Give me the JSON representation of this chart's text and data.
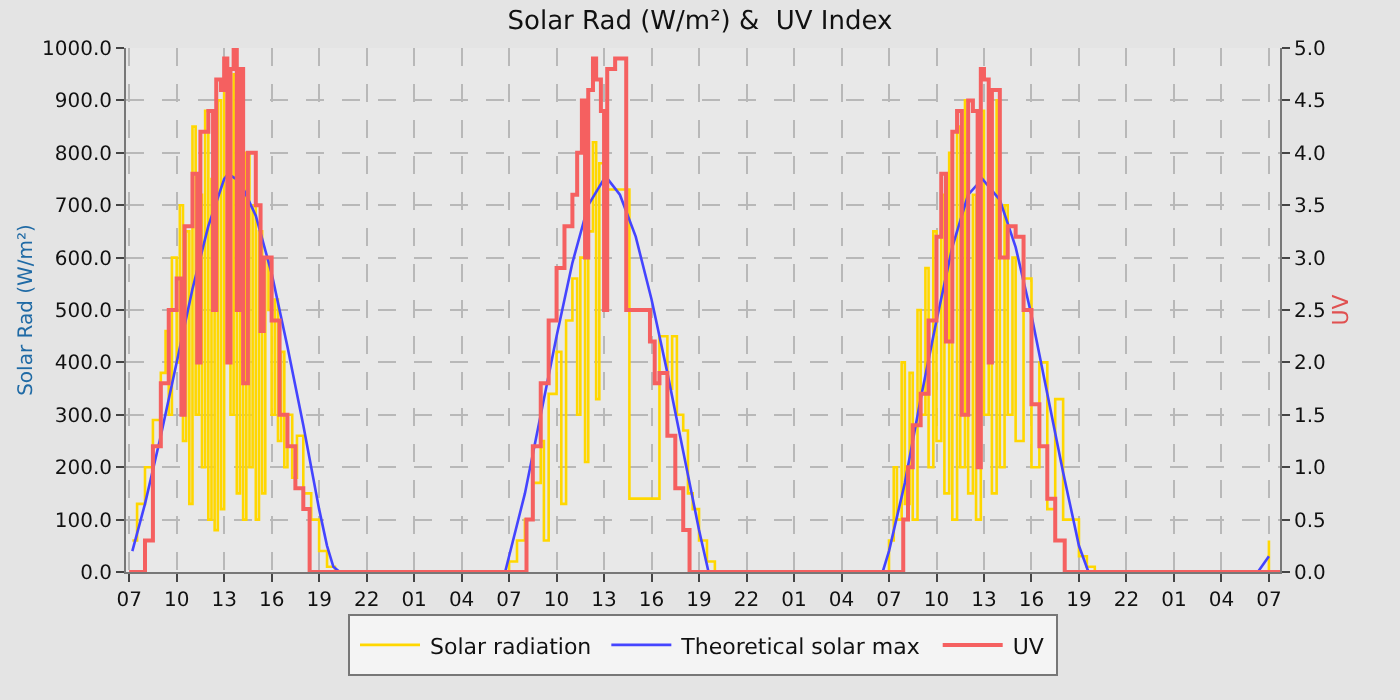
{
  "chart_data": {
    "type": "line",
    "title": "Solar Rad (W/m²) &  UV Index",
    "ylabel": "Solar Rad (W/m²)",
    "y2label": "UV",
    "xlim": [
      "--01-01T06:48",
      "--01-04T07:42"
    ],
    "xticks": [
      {
        "value": "--01-01T07:00",
        "label": "07"
      },
      {
        "value": "--01-01T10:00",
        "label": "10"
      },
      {
        "value": "--01-01T13:00",
        "label": "13"
      },
      {
        "value": "--01-01T16:00",
        "label": "16"
      },
      {
        "value": "--01-01T19:00",
        "label": "19"
      },
      {
        "value": "--01-01T22:00",
        "label": "22"
      },
      {
        "value": "--01-02T01:00",
        "label": "01"
      },
      {
        "value": "--01-02T04:00",
        "label": "04"
      },
      {
        "value": "--01-02T07:00",
        "label": "07"
      },
      {
        "value": "--01-02T10:00",
        "label": "10"
      },
      {
        "value": "--01-02T13:00",
        "label": "13"
      },
      {
        "value": "--01-02T16:00",
        "label": "16"
      },
      {
        "value": "--01-02T19:00",
        "label": "19"
      },
      {
        "value": "--01-02T22:00",
        "label": "22"
      },
      {
        "value": "--01-03T01:00",
        "label": "01"
      },
      {
        "value": "--01-03T04:00",
        "label": "04"
      },
      {
        "value": "--01-03T07:00",
        "label": "07"
      },
      {
        "value": "--01-03T10:00",
        "label": "10"
      },
      {
        "value": "--01-03T13:00",
        "label": "13"
      },
      {
        "value": "--01-03T16:00",
        "label": "16"
      },
      {
        "value": "--01-03T19:00",
        "label": "19"
      },
      {
        "value": "--01-03T22:00",
        "label": "22"
      },
      {
        "value": "--01-04T01:00",
        "label": "01"
      },
      {
        "value": "--01-04T04:00",
        "label": "04"
      },
      {
        "value": "--01-04T07:00",
        "label": "07"
      }
    ],
    "ylim": [
      0,
      1000
    ],
    "yticks": [
      {
        "value": 0,
        "label": "0.0"
      },
      {
        "value": 100,
        "label": "100.0"
      },
      {
        "value": 200,
        "label": "200.0"
      },
      {
        "value": 300,
        "label": "300.0"
      },
      {
        "value": 400,
        "label": "400.0"
      },
      {
        "value": 500,
        "label": "500.0"
      },
      {
        "value": 600,
        "label": "600.0"
      },
      {
        "value": 700,
        "label": "700.0"
      },
      {
        "value": 800,
        "label": "800.0"
      },
      {
        "value": 900,
        "label": "900.0"
      },
      {
        "value": 1000,
        "label": "1000.0"
      }
    ],
    "y2lim": [
      0,
      5
    ],
    "y2ticks": [
      {
        "value": 0,
        "label": "0.0"
      },
      {
        "value": 0.5,
        "label": "0.5"
      },
      {
        "value": 1,
        "label": "1.0"
      },
      {
        "value": 1.5,
        "label": "1.5"
      },
      {
        "value": 2,
        "label": "2.0"
      },
      {
        "value": 2.5,
        "label": "2.5"
      },
      {
        "value": 3,
        "label": "3.0"
      },
      {
        "value": 3.5,
        "label": "3.5"
      },
      {
        "value": 4,
        "label": "4.0"
      },
      {
        "value": 4.5,
        "label": "4.5"
      },
      {
        "value": 5,
        "label": "5.0"
      }
    ],
    "grid": true,
    "legend": "bottom",
    "marker": "none",
    "series": [
      {
        "name": "Solar radiation",
        "type": "step",
        "color": "#ffd700",
        "x": [
          "--01-01T07:12",
          "--01-01T07:30",
          "--01-01T08:00",
          "--01-01T08:30",
          "--01-01T09:00",
          "--01-01T09:18",
          "--01-01T09:30",
          "--01-01T09:42",
          "--01-01T10:00",
          "--01-01T10:12",
          "--01-01T10:24",
          "--01-01T10:36",
          "--01-01T10:48",
          "--01-01T11:00",
          "--01-01T11:12",
          "--01-01T11:24",
          "--01-01T11:36",
          "--01-01T11:48",
          "--01-01T12:00",
          "--01-01T12:12",
          "--01-01T12:24",
          "--01-01T12:36",
          "--01-01T12:48",
          "--01-01T13:00",
          "--01-01T13:12",
          "--01-01T13:24",
          "--01-01T13:36",
          "--01-01T13:48",
          "--01-01T14:00",
          "--01-01T14:12",
          "--01-01T14:24",
          "--01-01T14:36",
          "--01-01T14:48",
          "--01-01T15:00",
          "--01-01T15:12",
          "--01-01T15:24",
          "--01-01T15:36",
          "--01-01T15:48",
          "--01-01T16:00",
          "--01-01T16:12",
          "--01-01T16:24",
          "--01-01T16:36",
          "--01-01T16:48",
          "--01-01T17:00",
          "--01-01T17:18",
          "--01-01T17:36",
          "--01-01T18:00",
          "--01-01T18:30",
          "--01-01T19:00",
          "--01-01T19:30",
          "--01-01T20:00",
          "--01-02T06:30",
          "--01-02T07:00",
          "--01-02T07:30",
          "--01-02T08:00",
          "--01-02T08:30",
          "--01-02T09:00",
          "--01-02T09:12",
          "--01-02T09:30",
          "--01-02T10:00",
          "--01-02T10:18",
          "--01-02T10:36",
          "--01-02T11:00",
          "--01-02T11:18",
          "--01-02T11:30",
          "--01-02T11:48",
          "--01-02T12:00",
          "--01-02T12:18",
          "--01-02T12:30",
          "--01-02T12:42",
          "--01-02T13:00",
          "--01-02T13:12",
          "--01-02T13:30",
          "--01-02T14:00",
          "--01-02T14:24",
          "--01-02T14:36",
          "--01-02T15:00",
          "--01-02T15:30",
          "--01-02T16:00",
          "--01-02T16:24",
          "--01-02T16:30",
          "--01-02T17:00",
          "--01-02T17:18",
          "--01-02T17:36",
          "--01-02T18:00",
          "--01-02T18:18",
          "--01-02T18:36",
          "--01-02T19:00",
          "--01-02T19:30",
          "--01-02T20:00",
          "--01-03T06:30",
          "--01-03T07:00",
          "--01-03T07:18",
          "--01-03T07:30",
          "--01-03T07:48",
          "--01-03T08:00",
          "--01-03T08:18",
          "--01-03T08:30",
          "--01-03T08:48",
          "--01-03T09:00",
          "--01-03T09:18",
          "--01-03T09:30",
          "--01-03T09:48",
          "--01-03T10:00",
          "--01-03T10:18",
          "--01-03T10:30",
          "--01-03T10:48",
          "--01-03T11:00",
          "--01-03T11:18",
          "--01-03T11:30",
          "--01-03T11:48",
          "--01-03T12:00",
          "--01-03T12:18",
          "--01-03T12:30",
          "--01-03T12:48",
          "--01-03T13:00",
          "--01-03T13:18",
          "--01-03T13:30",
          "--01-03T13:48",
          "--01-03T14:00",
          "--01-03T14:18",
          "--01-03T14:30",
          "--01-03T14:48",
          "--01-03T15:00",
          "--01-03T15:30",
          "--01-03T16:00",
          "--01-03T16:30",
          "--01-03T17:00",
          "--01-03T17:30",
          "--01-03T18:00",
          "--01-03T18:30",
          "--01-03T19:00",
          "--01-03T19:30",
          "--01-03T20:00",
          "--01-04T06:30",
          "--01-04T07:00"
        ],
        "values": [
          60,
          130,
          200,
          290,
          380,
          460,
          300,
          600,
          400,
          700,
          250,
          650,
          130,
          850,
          300,
          720,
          200,
          880,
          100,
          750,
          80,
          900,
          120,
          920,
          600,
          300,
          950,
          150,
          900,
          100,
          800,
          200,
          700,
          100,
          650,
          150,
          600,
          500,
          300,
          520,
          250,
          420,
          200,
          300,
          180,
          260,
          150,
          100,
          40,
          10,
          0,
          0,
          20,
          60,
          100,
          170,
          250,
          60,
          340,
          420,
          130,
          480,
          560,
          300,
          600,
          210,
          650,
          820,
          330,
          780,
          650,
          730,
          730,
          730,
          730,
          140,
          140,
          140,
          140,
          140,
          450,
          350,
          450,
          300,
          270,
          150,
          120,
          60,
          20,
          0,
          0,
          60,
          200,
          100,
          400,
          130,
          380,
          100,
          500,
          300,
          580,
          200,
          650,
          250,
          720,
          150,
          800,
          100,
          850,
          200,
          900,
          150,
          720,
          100,
          880,
          300,
          820,
          150,
          900,
          200,
          700,
          300,
          600,
          250,
          560,
          200,
          400,
          120,
          330,
          100,
          100,
          30,
          10,
          0,
          0,
          60
        ]
      },
      {
        "name": "Theoretical solar max",
        "color": "#4444ff",
        "x": [
          "--01-01T07:12",
          "--01-01T08:00",
          "--01-01T09:00",
          "--01-01T10:00",
          "--01-01T11:00",
          "--01-01T12:00",
          "--01-01T13:00",
          "--01-01T13:15",
          "--01-01T14:00",
          "--01-01T15:00",
          "--01-01T16:00",
          "--01-01T17:00",
          "--01-01T18:00",
          "--01-01T19:00",
          "--01-01T19:30",
          "--01-01T19:54",
          "--01-01T20:18",
          "--01-02T06:45",
          "--01-02T07:00",
          "--01-02T08:00",
          "--01-02T09:00",
          "--01-02T10:00",
          "--01-02T11:00",
          "--01-02T12:00",
          "--01-02T13:06",
          "--01-02T14:00",
          "--01-02T15:00",
          "--01-02T16:00",
          "--01-02T17:00",
          "--01-02T18:00",
          "--01-02T19:00",
          "--01-02T19:36",
          "--01-03T06:36",
          "--01-03T07:00",
          "--01-03T08:00",
          "--01-03T09:00",
          "--01-03T10:00",
          "--01-03T11:00",
          "--01-03T12:00",
          "--01-03T12:54",
          "--01-03T14:00",
          "--01-03T15:00",
          "--01-03T16:00",
          "--01-03T17:00",
          "--01-03T18:00",
          "--01-03T19:00",
          "--01-03T19:36",
          "--01-04T06:18",
          "--01-04T07:00"
        ],
        "values": [
          40,
          130,
          260,
          400,
          540,
          660,
          750,
          760,
          745,
          680,
          570,
          430,
          280,
          120,
          50,
          10,
          0,
          0,
          30,
          150,
          300,
          450,
          590,
          700,
          755,
          720,
          640,
          520,
          380,
          230,
          80,
          0,
          0,
          40,
          170,
          330,
          480,
          620,
          720,
          750,
          710,
          620,
          490,
          340,
          190,
          50,
          0,
          0,
          30
        ]
      },
      {
        "name": "UV",
        "type": "step",
        "axis": "y2",
        "color": "#f56060",
        "x": [
          "--01-01T07:00",
          "--01-01T08:00",
          "--01-01T08:30",
          "--01-01T09:00",
          "--01-01T09:30",
          "--01-01T10:00",
          "--01-01T10:18",
          "--01-01T10:30",
          "--01-01T11:00",
          "--01-01T11:18",
          "--01-01T11:30",
          "--01-01T12:00",
          "--01-01T12:18",
          "--01-01T12:30",
          "--01-01T12:48",
          "--01-01T13:00",
          "--01-01T13:12",
          "--01-01T13:24",
          "--01-01T13:36",
          "--01-01T13:48",
          "--01-01T14:00",
          "--01-01T14:12",
          "--01-01T14:30",
          "--01-01T15:00",
          "--01-01T15:18",
          "--01-01T15:30",
          "--01-01T16:00",
          "--01-01T16:30",
          "--01-01T17:00",
          "--01-01T17:30",
          "--01-01T18:00",
          "--01-01T18:24",
          "--01-02T08:06",
          "--01-02T08:30",
          "--01-02T09:00",
          "--01-02T09:30",
          "--01-02T10:00",
          "--01-02T10:30",
          "--01-02T11:00",
          "--01-02T11:18",
          "--01-02T11:36",
          "--01-02T11:48",
          "--01-02T12:00",
          "--01-02T12:18",
          "--01-02T12:30",
          "--01-02T12:48",
          "--01-02T13:00",
          "--01-02T13:12",
          "--01-02T13:30",
          "--01-02T13:42",
          "--01-02T14:24",
          "--01-02T15:54",
          "--01-02T16:12",
          "--01-02T16:30",
          "--01-02T17:00",
          "--01-02T17:30",
          "--01-02T18:00",
          "--01-02T18:24",
          "--01-03T07:54",
          "--01-03T08:12",
          "--01-03T08:30",
          "--01-03T09:00",
          "--01-03T09:30",
          "--01-03T10:00",
          "--01-03T10:18",
          "--01-03T10:36",
          "--01-03T11:00",
          "--01-03T11:18",
          "--01-03T11:36",
          "--01-03T12:00",
          "--01-03T12:18",
          "--01-03T12:36",
          "--01-03T12:48",
          "--01-03T13:00",
          "--01-03T13:18",
          "--01-03T13:30",
          "--01-03T14:00",
          "--01-03T14:30",
          "--01-03T15:00",
          "--01-03T15:30",
          "--01-03T16:00",
          "--01-03T16:30",
          "--01-03T17:00",
          "--01-03T17:30",
          "--01-03T18:06",
          "--01-04T07:42"
        ],
        "values": [
          0,
          0.3,
          1.2,
          1.8,
          2.5,
          2.8,
          1.5,
          3.3,
          3.8,
          2.0,
          4.2,
          4.4,
          2.5,
          4.7,
          4.6,
          4.9,
          2.0,
          4.8,
          5.0,
          2.5,
          4.8,
          1.8,
          4.0,
          3.5,
          2.3,
          3.0,
          2.4,
          1.5,
          1.2,
          0.8,
          0.6,
          0,
          0.5,
          1.2,
          1.8,
          2.4,
          2.9,
          3.3,
          3.6,
          4.0,
          4.5,
          3.0,
          4.6,
          4.9,
          4.7,
          4.4,
          2.5,
          4.8,
          4.8,
          4.9,
          2.5,
          2.2,
          1.8,
          1.9,
          1.3,
          0.8,
          0.4,
          0,
          0.5,
          1.0,
          1.4,
          1.7,
          2.4,
          3.2,
          3.8,
          2.2,
          4.2,
          4.4,
          1.5,
          4.5,
          4.4,
          1.0,
          4.8,
          4.7,
          2.0,
          4.6,
          3.0,
          3.3,
          3.2,
          2.5,
          1.6,
          1.2,
          0.7,
          0.3,
          0,
          0
        ]
      }
    ]
  }
}
